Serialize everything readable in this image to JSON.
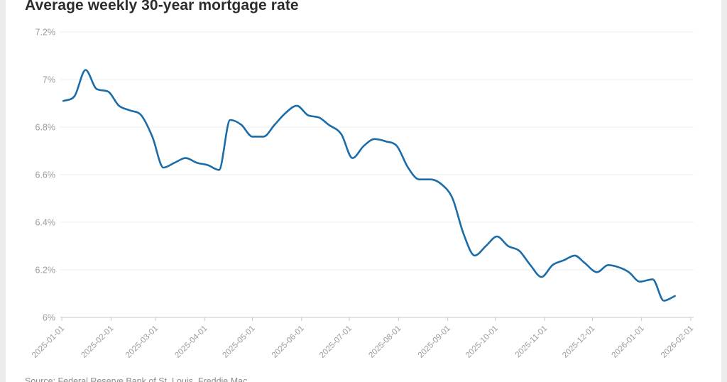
{
  "page": {
    "background_color": "#ebebeb",
    "card_color": "#ffffff"
  },
  "header": {
    "title": "Average weekly 30-year mortgage rate"
  },
  "footer": {
    "source": "Source: Federal Reserve Bank of St. Louis, Freddie Mac"
  },
  "chart_data": {
    "type": "line",
    "title": "Average weekly 30-year mortgage rate",
    "xlabel": "",
    "ylabel": "",
    "ylim": [
      6.0,
      7.2
    ],
    "x_range": [
      "2025-01-01",
      "2026-02-01"
    ],
    "grid": "horizontal",
    "legend": "none",
    "line_color": "#1b6ca8",
    "grid_color": "#ececec",
    "axis_line_color": "#c9c9c9",
    "tick_label_color": "#9b9b9b",
    "y_ticks": [
      {
        "value": 7.2,
        "label": "7.2%"
      },
      {
        "value": 7.0,
        "label": "7%"
      },
      {
        "value": 6.8,
        "label": "6.8%"
      },
      {
        "value": 6.6,
        "label": "6.6%"
      },
      {
        "value": 6.4,
        "label": "6.4%"
      },
      {
        "value": 6.2,
        "label": "6.2%"
      },
      {
        "value": 6.0,
        "label": "6%"
      }
    ],
    "x_ticks": [
      "2025-01-01",
      "2025-02-01",
      "2025-03-01",
      "2025-04-01",
      "2025-05-01",
      "2025-06-01",
      "2025-07-01",
      "2025-08-01",
      "2025-09-01",
      "2025-10-01",
      "2025-11-01",
      "2025-12-01",
      "2026-01-01",
      "2026-02-01"
    ],
    "series": [
      {
        "name": "Average weekly 30-year mortgage rate",
        "points": [
          [
            "2025-01-02",
            6.91
          ],
          [
            "2025-01-09",
            6.93
          ],
          [
            "2025-01-16",
            7.04
          ],
          [
            "2025-01-23",
            6.96
          ],
          [
            "2025-01-30",
            6.95
          ],
          [
            "2025-02-06",
            6.89
          ],
          [
            "2025-02-13",
            6.87
          ],
          [
            "2025-02-20",
            6.85
          ],
          [
            "2025-02-27",
            6.76
          ],
          [
            "2025-03-06",
            6.63
          ],
          [
            "2025-03-13",
            6.65
          ],
          [
            "2025-03-20",
            6.67
          ],
          [
            "2025-03-27",
            6.65
          ],
          [
            "2025-04-03",
            6.64
          ],
          [
            "2025-04-10",
            6.62
          ],
          [
            "2025-04-17",
            6.83
          ],
          [
            "2025-04-24",
            6.81
          ],
          [
            "2025-05-01",
            6.76
          ],
          [
            "2025-05-08",
            6.76
          ],
          [
            "2025-05-15",
            6.81
          ],
          [
            "2025-05-22",
            6.86
          ],
          [
            "2025-05-29",
            6.89
          ],
          [
            "2025-06-05",
            6.85
          ],
          [
            "2025-06-12",
            6.84
          ],
          [
            "2025-06-18",
            6.81
          ],
          [
            "2025-06-26",
            6.77
          ],
          [
            "2025-07-03",
            6.67
          ],
          [
            "2025-07-10",
            6.72
          ],
          [
            "2025-07-17",
            6.75
          ],
          [
            "2025-07-24",
            6.74
          ],
          [
            "2025-07-31",
            6.72
          ],
          [
            "2025-08-07",
            6.63
          ],
          [
            "2025-08-14",
            6.58
          ],
          [
            "2025-08-21",
            6.58
          ],
          [
            "2025-08-28",
            6.56
          ],
          [
            "2025-09-04",
            6.5
          ],
          [
            "2025-09-11",
            6.35
          ],
          [
            "2025-09-18",
            6.26
          ],
          [
            "2025-09-25",
            6.3
          ],
          [
            "2025-10-02",
            6.34
          ],
          [
            "2025-10-09",
            6.3
          ],
          [
            "2025-10-16",
            6.28
          ],
          [
            "2025-10-23",
            6.22
          ],
          [
            "2025-10-30",
            6.17
          ],
          [
            "2025-11-06",
            6.22
          ],
          [
            "2025-11-13",
            6.24
          ],
          [
            "2025-11-20",
            6.26
          ],
          [
            "2025-11-26",
            6.23
          ],
          [
            "2025-12-04",
            6.19
          ],
          [
            "2025-12-11",
            6.22
          ],
          [
            "2025-12-18",
            6.21
          ],
          [
            "2025-12-24",
            6.19
          ],
          [
            "2025-12-31",
            6.15
          ],
          [
            "2026-01-08",
            6.16
          ],
          [
            "2026-01-15",
            6.07
          ],
          [
            "2026-01-22",
            6.09
          ]
        ]
      }
    ]
  }
}
